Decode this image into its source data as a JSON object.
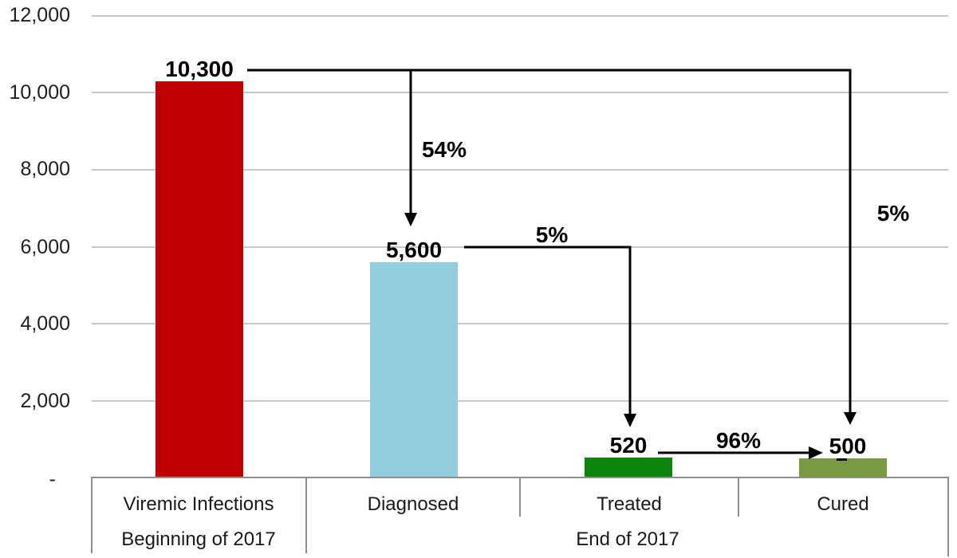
{
  "chart_data": {
    "type": "bar",
    "categories": [
      "Viremic Infections",
      "Diagnosed",
      "Treated",
      "Cured"
    ],
    "values": [
      10300,
      5600,
      520,
      500
    ],
    "value_labels": [
      "10,300",
      "5,600",
      "520",
      "500"
    ],
    "bar_colors": [
      "#c00000",
      "#92cdde",
      "#0a840a",
      "#7a9a41"
    ],
    "ylim": [
      0,
      12000
    ],
    "y_tick_labels": [
      "12,000",
      "10,000",
      "8,000",
      "6,000",
      "4,000",
      "2,000",
      "-"
    ],
    "grid": true,
    "legend": false,
    "group_labels": {
      "beginning": "Beginning of 2017",
      "end": "End of 2017"
    },
    "flow_annotations": [
      {
        "from": "Viremic Infections",
        "to": "Diagnosed",
        "label": "54%"
      },
      {
        "from": "Diagnosed",
        "to": "Treated",
        "label": "5%"
      },
      {
        "from": "Treated",
        "to": "Cured",
        "label": "96%"
      },
      {
        "from": "Viremic Infections",
        "to": "Cured",
        "label": "5%"
      }
    ],
    "colors": {
      "gridline": "#c9c9c9",
      "axis_border": "#8e8e8e",
      "arrow": "#000000"
    }
  }
}
